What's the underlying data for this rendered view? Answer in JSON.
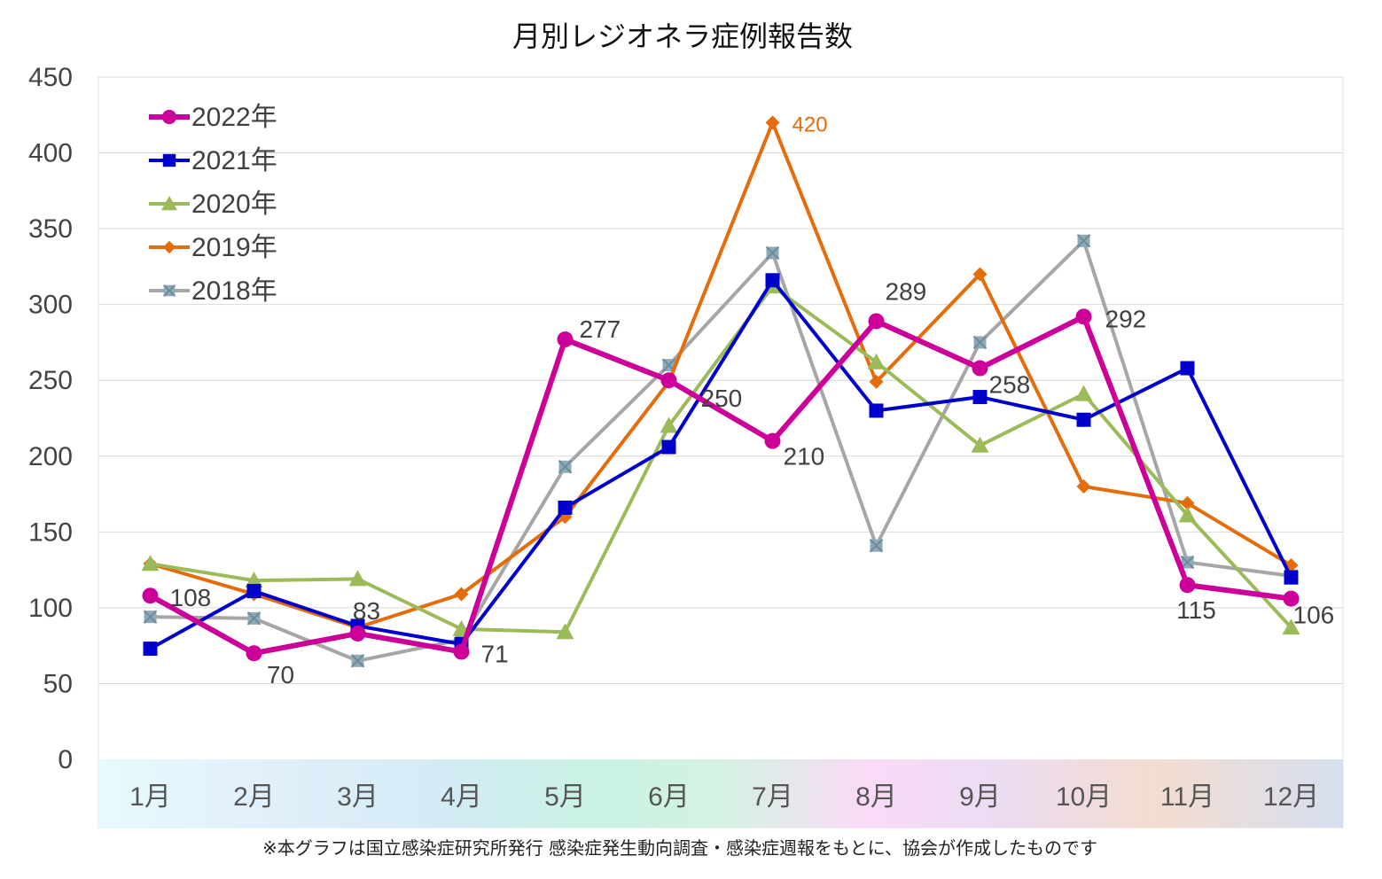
{
  "chart_data": {
    "type": "line",
    "title": "月別レジオネラ症例報告数",
    "categories": [
      "1月",
      "2月",
      "3月",
      "4月",
      "5月",
      "6月",
      "7月",
      "8月",
      "9月",
      "10月",
      "11月",
      "12月"
    ],
    "ylim": [
      0,
      450
    ],
    "yticks": [
      0,
      50,
      100,
      150,
      200,
      250,
      300,
      350,
      400,
      450
    ],
    "grid": true,
    "legend_position": "top-left",
    "series": [
      {
        "name": "2018年",
        "color": "#a6a6a6",
        "marker": "x-square",
        "marker_color": "#8eaab8",
        "values": [
          94,
          93,
          65,
          79,
          193,
          260,
          334,
          141,
          275,
          342,
          130,
          121
        ]
      },
      {
        "name": "2019年",
        "color": "#e46c0a",
        "marker": "diamond",
        "values": [
          129,
          109,
          87,
          109,
          160,
          249,
          420,
          249,
          320,
          180,
          169,
          128
        ]
      },
      {
        "name": "2020年",
        "color": "#9bbb59",
        "marker": "triangle",
        "values": [
          129,
          118,
          119,
          86,
          84,
          220,
          312,
          262,
          207,
          241,
          161,
          87
        ]
      },
      {
        "name": "2021年",
        "color": "#0000cc",
        "marker": "square",
        "values": [
          73,
          111,
          88,
          76,
          166,
          206,
          316,
          230,
          239,
          224,
          258,
          120
        ]
      },
      {
        "name": "2022年",
        "color": "#cc0099",
        "marker": "circle",
        "values": [
          108,
          70,
          83,
          71,
          277,
          250,
          210,
          289,
          258,
          292,
          115,
          106
        ]
      }
    ],
    "legend_order": [
      "2022年",
      "2021年",
      "2020年",
      "2019年",
      "2018年"
    ],
    "annotations": [
      {
        "series": "2022年",
        "index": 0,
        "text": "108"
      },
      {
        "series": "2022年",
        "index": 1,
        "text": "70"
      },
      {
        "series": "2022年",
        "index": 2,
        "text": "83"
      },
      {
        "series": "2022年",
        "index": 3,
        "text": "71"
      },
      {
        "series": "2022年",
        "index": 4,
        "text": "277"
      },
      {
        "series": "2022年",
        "index": 5,
        "text": "250"
      },
      {
        "series": "2022年",
        "index": 6,
        "text": "210"
      },
      {
        "series": "2022年",
        "index": 7,
        "text": "289"
      },
      {
        "series": "2022年",
        "index": 8,
        "text": "258"
      },
      {
        "series": "2022年",
        "index": 9,
        "text": "292"
      },
      {
        "series": "2022年",
        "index": 10,
        "text": "115"
      },
      {
        "series": "2022年",
        "index": 11,
        "text": "106"
      },
      {
        "series": "2019年",
        "index": 6,
        "text": "420"
      }
    ],
    "footnote": "※本グラフは国立感染症研究所発行 感染症発生動向調査・感染症週報をもとに、協会が作成したものです"
  }
}
